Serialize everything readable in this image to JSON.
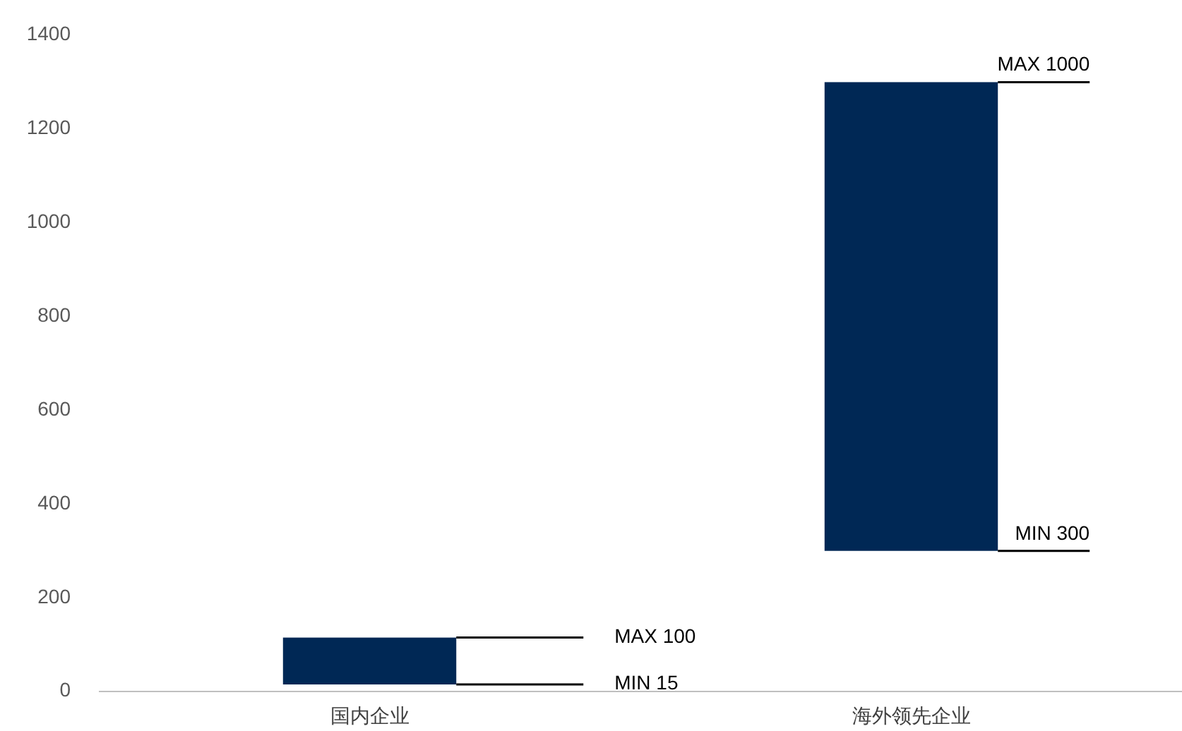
{
  "chart_data": {
    "type": "bar",
    "categories": [
      "国内企业",
      "海外领先企业"
    ],
    "values": [
      100,
      1000
    ],
    "base": [
      15,
      300
    ],
    "color": "#002855",
    "ylim": [
      0,
      1400
    ],
    "yticks": [
      0,
      200,
      400,
      600,
      800,
      1000,
      1200,
      1400
    ],
    "grid": false,
    "annotations": [
      "MAX 100",
      "MIN 15",
      "MAX 1000",
      "MIN 300"
    ]
  }
}
